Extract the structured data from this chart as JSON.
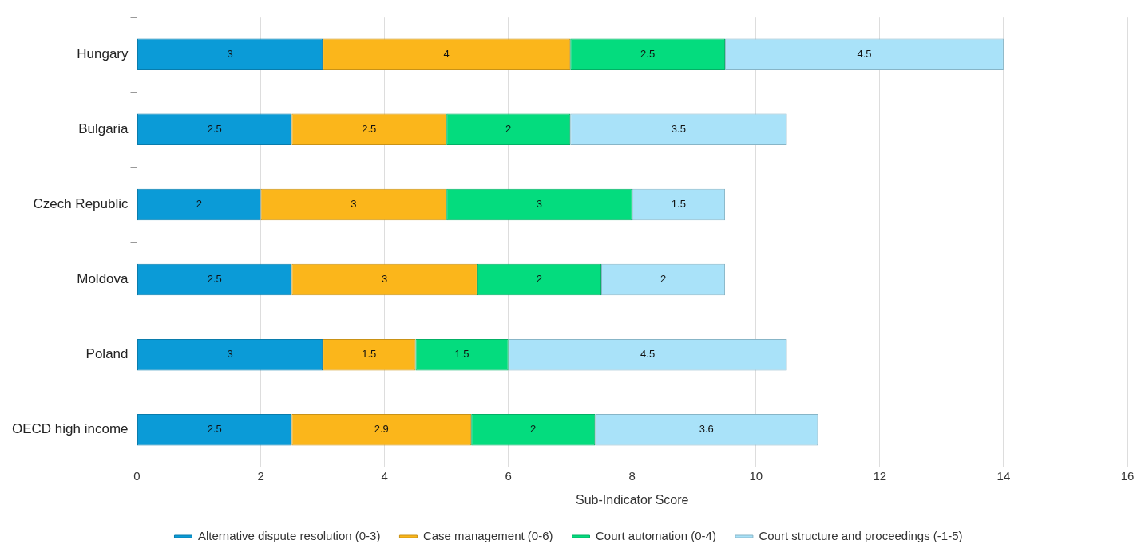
{
  "chart_data": {
    "type": "bar",
    "orientation": "horizontal",
    "stacked": true,
    "xlabel": "Sub-Indicator Score",
    "categories": [
      "Hungary",
      "Bulgaria",
      "Czech Republic",
      "Moldova",
      "Poland",
      "OECD high income"
    ],
    "series": [
      {
        "name": "Alternative dispute resolution (0-3)",
        "color": "#0b9bd7",
        "values": [
          3,
          2.5,
          2,
          2.5,
          3,
          2.5
        ]
      },
      {
        "name": "Case management (0-6)",
        "color": "#fbb61b",
        "values": [
          4,
          2.5,
          3,
          3,
          1.5,
          2.9
        ]
      },
      {
        "name": "Court automation (0-4)",
        "color": "#04dc7e",
        "values": [
          2.5,
          2,
          3,
          2,
          1.5,
          2
        ]
      },
      {
        "name": "Court structure and proceedings (-1-5)",
        "color": "#a9e2f9",
        "values": [
          4.5,
          3.5,
          1.5,
          2,
          4.5,
          3.6
        ]
      }
    ],
    "xlim": [
      0,
      16
    ],
    "xticks": [
      0,
      2,
      4,
      6,
      8,
      10,
      12,
      14,
      16
    ],
    "grid": "x",
    "legend": "bottom",
    "data_labels": true
  }
}
